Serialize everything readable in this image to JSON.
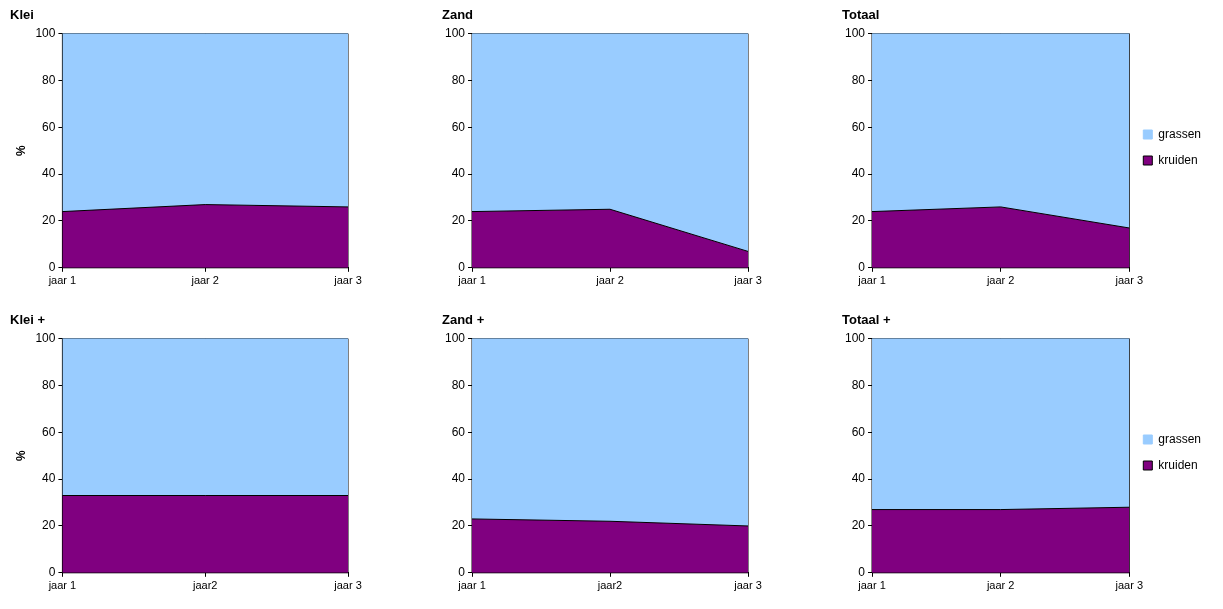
{
  "chart_data": [
    {
      "type": "area",
      "title": "Klei",
      "ylabel": "%",
      "categories": [
        "jaar 1",
        "jaar 2",
        "jaar 3"
      ],
      "stacked": true,
      "ylim": [
        0,
        100
      ],
      "yticks": [
        0,
        20,
        40,
        60,
        80,
        100
      ],
      "series": [
        {
          "color": "#800080",
          "values": [
            24,
            27,
            26
          ]
        },
        {
          "color": "#99ccff",
          "values": [
            76,
            73,
            74
          ]
        }
      ]
    },
    {
      "type": "area",
      "title": "Zand",
      "categories": [
        "jaar 1",
        "jaar 2",
        "jaar 3"
      ],
      "stacked": true,
      "ylim": [
        0,
        100
      ],
      "yticks": [
        0,
        20,
        40,
        60,
        80,
        100
      ],
      "series": [
        {
          "color": "#800080",
          "values": [
            24,
            25,
            7
          ]
        },
        {
          "color": "#99ccff",
          "values": [
            76,
            75,
            93
          ]
        }
      ]
    },
    {
      "type": "area",
      "title": "Totaal",
      "categories": [
        "jaar 1",
        "jaar 2",
        "jaar 3"
      ],
      "stacked": true,
      "ylim": [
        0,
        100
      ],
      "yticks": [
        0,
        20,
        40,
        60,
        80,
        100
      ],
      "legend": "right",
      "series": [
        {
          "name": "kruiden",
          "color": "#800080",
          "values": [
            24,
            26,
            17
          ]
        },
        {
          "name": "grassen",
          "color": "#99ccff",
          "values": [
            76,
            74,
            83
          ]
        }
      ]
    },
    {
      "type": "area",
      "title": "Klei +",
      "ylabel": "%",
      "categories": [
        "jaar 1",
        "jaar2",
        "jaar 3"
      ],
      "stacked": true,
      "ylim": [
        0,
        100
      ],
      "yticks": [
        0,
        20,
        40,
        60,
        80,
        100
      ],
      "series": [
        {
          "color": "#800080",
          "values": [
            33,
            33,
            33
          ]
        },
        {
          "color": "#99ccff",
          "values": [
            67,
            67,
            67
          ]
        }
      ]
    },
    {
      "type": "area",
      "title": "Zand +",
      "categories": [
        "jaar 1",
        "jaar2",
        "jaar 3"
      ],
      "stacked": true,
      "ylim": [
        0,
        100
      ],
      "yticks": [
        0,
        20,
        40,
        60,
        80,
        100
      ],
      "series": [
        {
          "color": "#800080",
          "values": [
            23,
            22,
            20
          ]
        },
        {
          "color": "#99ccff",
          "values": [
            77,
            78,
            80
          ]
        }
      ]
    },
    {
      "type": "area",
      "title": "Totaal +",
      "categories": [
        "jaar 1",
        "jaar 2",
        "jaar 3"
      ],
      "stacked": true,
      "ylim": [
        0,
        100
      ],
      "yticks": [
        0,
        20,
        40,
        60,
        80,
        100
      ],
      "legend": "right",
      "series": [
        {
          "name": "kruiden",
          "color": "#800080",
          "values": [
            27,
            27,
            28
          ]
        },
        {
          "name": "grassen",
          "color": "#99ccff",
          "values": [
            73,
            73,
            72
          ]
        }
      ]
    }
  ]
}
